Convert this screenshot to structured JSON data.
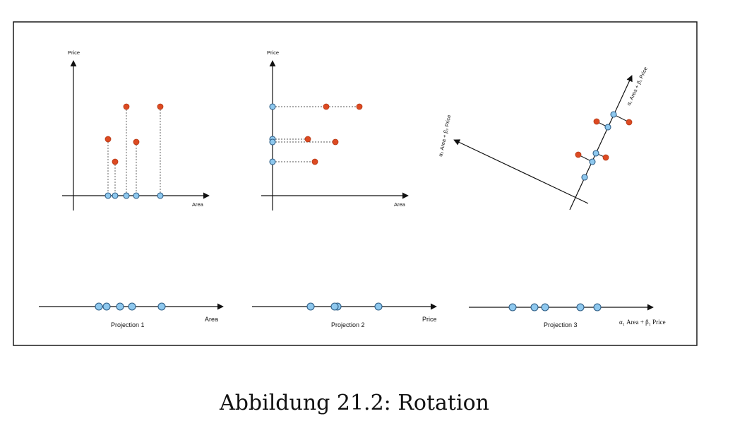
{
  "panels": [
    {
      "y_label": "Price",
      "x_label": "Area"
    },
    {
      "y_label": "Price",
      "x_label": "Area"
    },
    {
      "axis_label_1": "α₁ Area + β₁ Price",
      "axis_label_2": "α₂ Area + β₂ Price"
    }
  ],
  "projections": [
    {
      "title": "Projection 1",
      "axis_label": "Area"
    },
    {
      "title": "Projection 2",
      "axis_label": "Price"
    },
    {
      "title": "Projection 3",
      "axis_label": "α₁ Area + β₁ Price"
    }
  ],
  "caption": "Abbildung 21.2: Rotation",
  "colors": {
    "data_point": "#dd4a22",
    "projection_point": "#8ec8ee"
  }
}
